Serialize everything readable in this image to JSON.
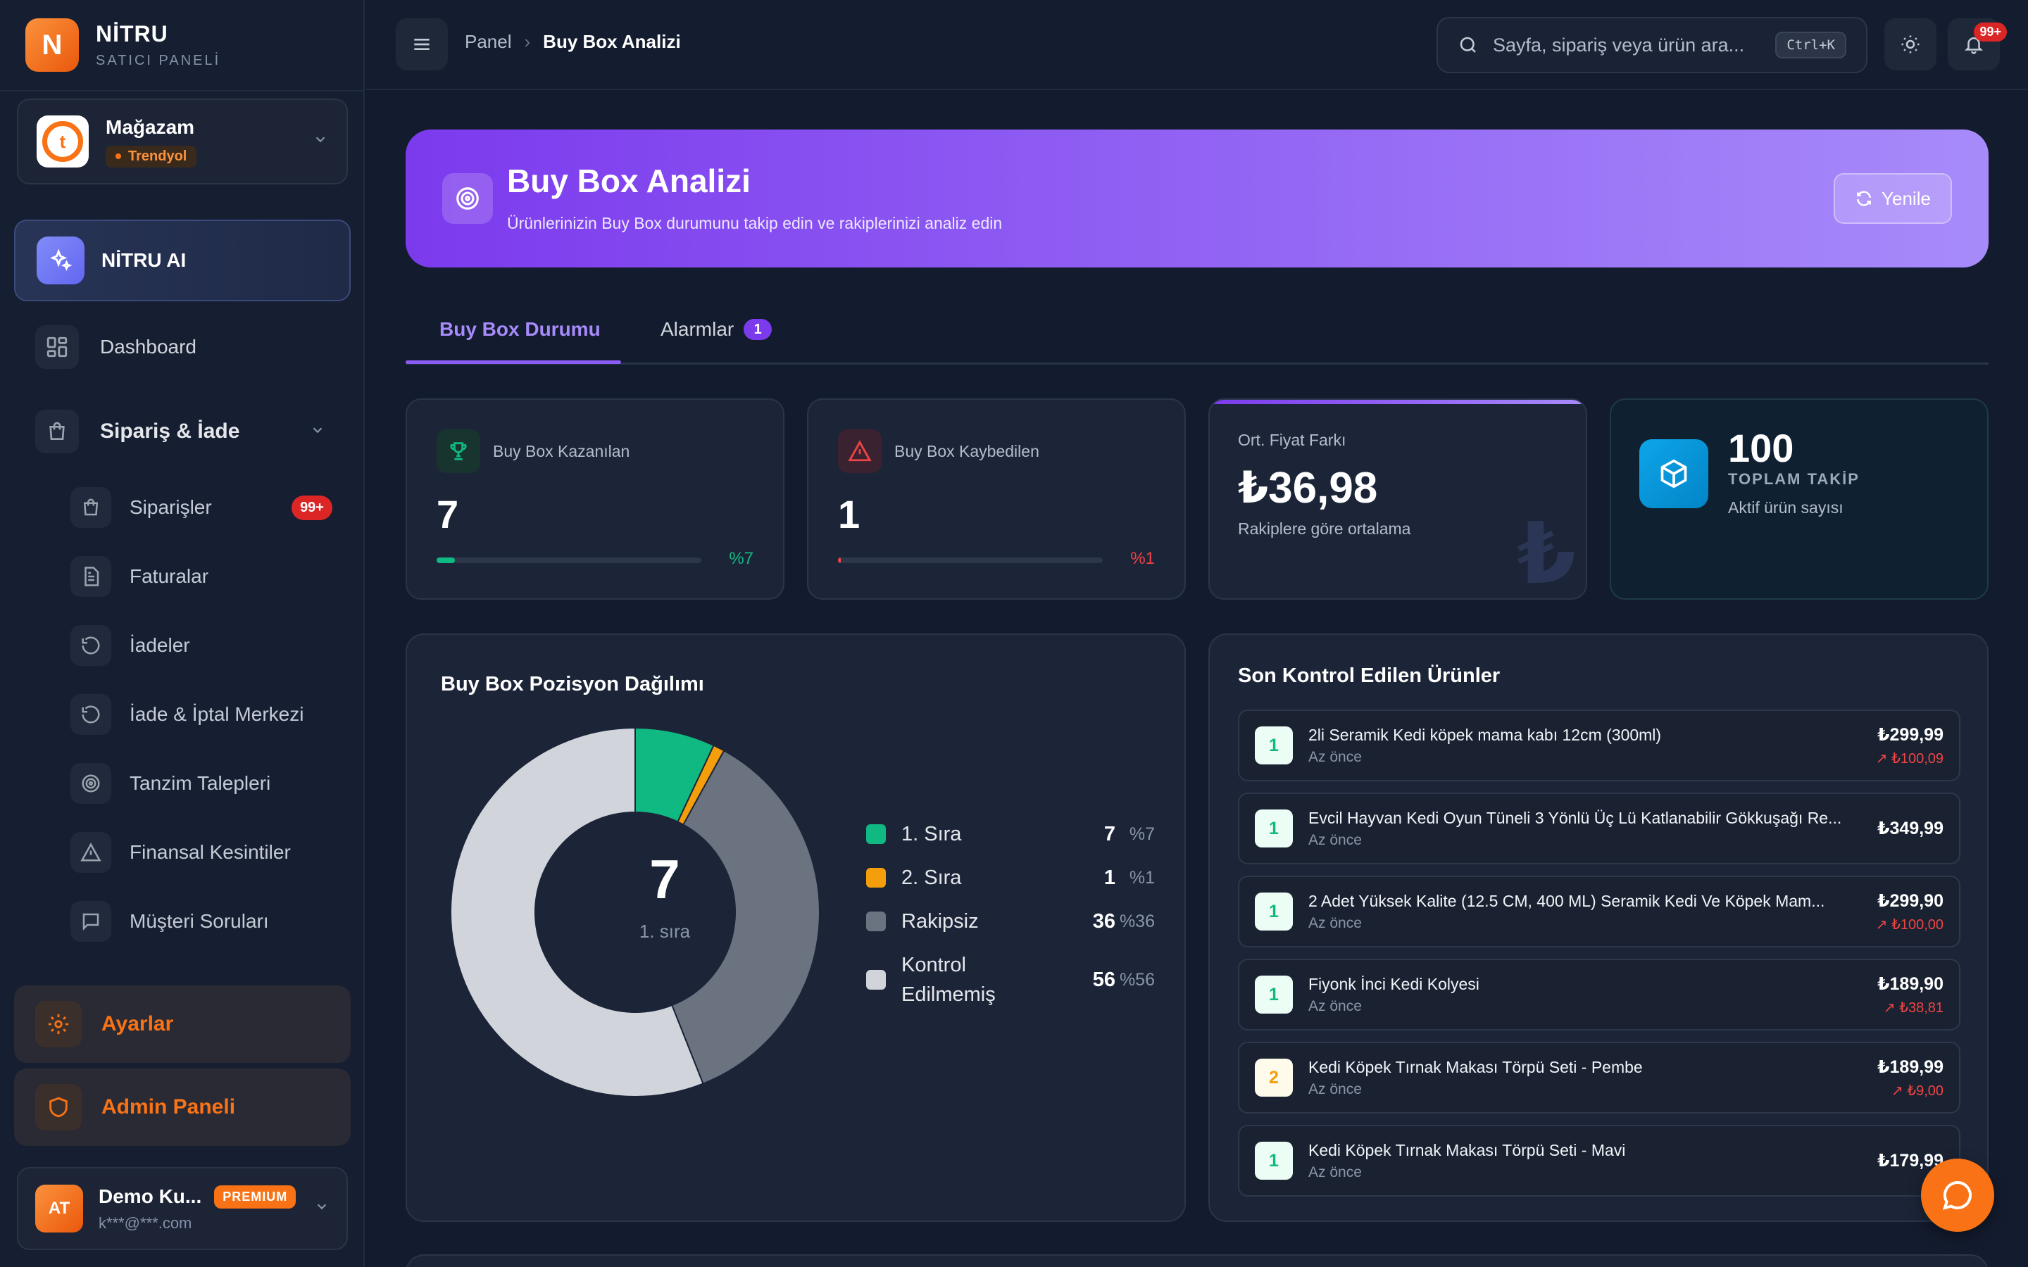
{
  "brand": {
    "logo_letter": "N",
    "name": "NİTRU",
    "subtitle": "SATICI PANELİ"
  },
  "store": {
    "name": "Mağazam",
    "platform": "Trendyol"
  },
  "sidebar": {
    "ai_label": "NİTRU AI",
    "dashboard_label": "Dashboard",
    "group_label": "Sipariş & İade",
    "sub_items": [
      {
        "label": "Siparişler",
        "badge": "99+",
        "icon": "bag-icon"
      },
      {
        "label": "Faturalar",
        "icon": "document-icon"
      },
      {
        "label": "İadeler",
        "icon": "return-icon"
      },
      {
        "label": "İade & İptal Merkezi",
        "icon": "return-icon"
      },
      {
        "label": "Tanzim Talepleri",
        "icon": "target-icon"
      },
      {
        "label": "Finansal Kesintiler",
        "icon": "warning-icon"
      },
      {
        "label": "Müşteri Soruları",
        "icon": "chat-icon"
      }
    ],
    "settings_label": "Ayarlar",
    "admin_label": "Admin Paneli"
  },
  "user": {
    "initials": "AT",
    "name": "Demo Ku...",
    "badge": "PREMIUM",
    "email": "k***@***.com"
  },
  "topbar": {
    "breadcrumb_root": "Panel",
    "breadcrumb_current": "Buy Box Analizi",
    "search_placeholder": "Sayfa, sipariş veya ürün ara...",
    "search_shortcut": "Ctrl+K",
    "notification_count": "99+"
  },
  "hero": {
    "title": "Buy Box Analizi",
    "subtitle": "Ürünlerinizin Buy Box durumunu takip edin ve rakiplerinizi analiz edin",
    "refresh_label": "Yenile"
  },
  "tabs": {
    "active": "Buy Box Durumu",
    "alarms": "Alarmlar",
    "alarms_count": "1"
  },
  "kpis": {
    "won": {
      "title": "Buy Box Kazanılan",
      "value": "7",
      "pct": "%7",
      "fill": 0.07
    },
    "lost": {
      "title": "Buy Box Kaybedilen",
      "value": "1",
      "pct": "%1",
      "fill": 0.01
    },
    "avg": {
      "title": "Ort. Fiyat Farkı",
      "value": "₺36,98",
      "sub": "Rakiplere göre ortalama",
      "watermark": "₺"
    },
    "total": {
      "value": "100",
      "label": "TOPLAM TAKİP",
      "sub": "Aktif ürün sayısı"
    }
  },
  "distribution": {
    "title": "Buy Box Pozisyon Dağılımı",
    "center_value": "7",
    "center_label": "1. sıra",
    "items": [
      {
        "name": "1. Sıra",
        "value": "7",
        "pct": "%7"
      },
      {
        "name": "2. Sıra",
        "value": "1",
        "pct": "%1"
      },
      {
        "name": "Rakipsiz",
        "value": "36",
        "pct": "%36"
      },
      {
        "name": "Kontrol Edilmemiş",
        "value": "56",
        "pct": "%56"
      }
    ]
  },
  "chart_data": {
    "type": "pie",
    "title": "Buy Box Pozisyon Dağılımı",
    "categories": [
      "1. Sıra",
      "2. Sıra",
      "Rakipsiz",
      "Kontrol Edilmemiş"
    ],
    "values": [
      7,
      1,
      36,
      56
    ],
    "colors": [
      "#10b981",
      "#f59e0b",
      "#6b7280",
      "#d1d5db"
    ],
    "legend": "right"
  },
  "recent": {
    "title": "Son Kontrol Edilen Ürünler",
    "items": [
      {
        "rank": "1",
        "name": "2li Seramik Kedi köpek mama kabı 12cm (300ml)",
        "time": "Az önce",
        "price": "₺299,99",
        "diff": "↗ ₺100,09"
      },
      {
        "rank": "1",
        "name": "Evcil Hayvan Kedi Oyun Tüneli 3 Yönlü Üç Lü Katlanabilir Gökkuşağı Re...",
        "time": "Az önce",
        "price": "₺349,99",
        "diff": ""
      },
      {
        "rank": "1",
        "name": "2 Adet Yüksek Kalite (12.5 CM, 400 ML) Seramik Kedi Ve Köpek Mam...",
        "time": "Az önce",
        "price": "₺299,90",
        "diff": "↗ ₺100,00"
      },
      {
        "rank": "1",
        "name": "Fiyonk İnci Kedi Kolyesi",
        "time": "Az önce",
        "price": "₺189,90",
        "diff": "↗ ₺38,81"
      },
      {
        "rank": "2",
        "name": "Kedi Köpek Tırnak Makası Törpü Seti - Pembe",
        "time": "Az önce",
        "price": "₺189,99",
        "diff": "↗ ₺9,00"
      },
      {
        "rank": "1",
        "name": "Kedi Köpek Tırnak Makası Törpü Seti - Mavi",
        "time": "Az önce",
        "price": "₺179,99",
        "diff": ""
      }
    ]
  },
  "colors": {
    "accent": "#f97316",
    "purple": "#8b5cf6",
    "success": "#10b981",
    "danger": "#ef4444"
  }
}
